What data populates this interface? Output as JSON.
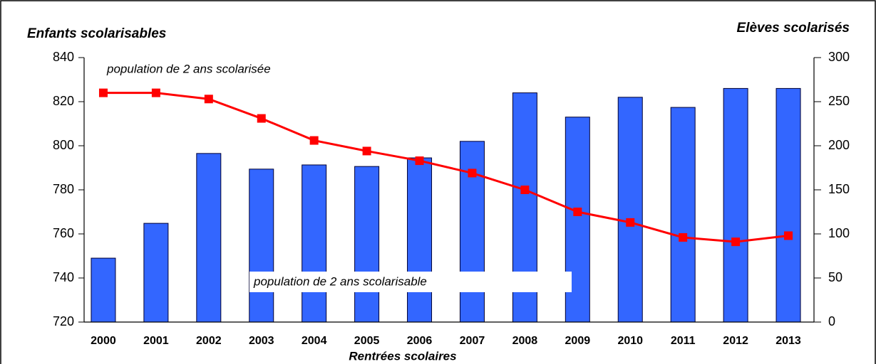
{
  "chart_data": {
    "type": "bar_line",
    "y_axis_label": "Enfants scolarisables",
    "y2_axis_label": "Elèves scolarisés",
    "x_axis_label": "Rentrées scolaires",
    "categories": [
      "2000",
      "2001",
      "2002",
      "2003",
      "2004",
      "2005",
      "2006",
      "2007",
      "2008",
      "2009",
      "2010",
      "2011",
      "2012",
      "2013"
    ],
    "series": [
      {
        "name": "population de 2 ans scolarisable",
        "type": "bar",
        "color": "#3366ff",
        "axis": "y",
        "values": [
          749,
          764.8,
          796.5,
          789.4,
          791.3,
          790.6,
          794.5,
          802,
          824,
          813,
          822,
          817.4,
          826,
          826
        ]
      },
      {
        "name": "population de 2 ans scolarisée",
        "type": "line",
        "color": "#ff0000",
        "axis": "y2",
        "values": [
          260,
          260,
          253,
          231,
          206,
          194,
          183,
          169,
          150,
          125,
          113,
          96,
          91,
          98
        ]
      }
    ],
    "ylim": [
      720,
      840
    ],
    "yticks": [
      720,
      740,
      760,
      780,
      800,
      820,
      840
    ],
    "y2lim": [
      0,
      300
    ],
    "y2ticks": [
      0,
      50,
      100,
      150,
      200,
      250,
      300
    ],
    "grid": false
  }
}
